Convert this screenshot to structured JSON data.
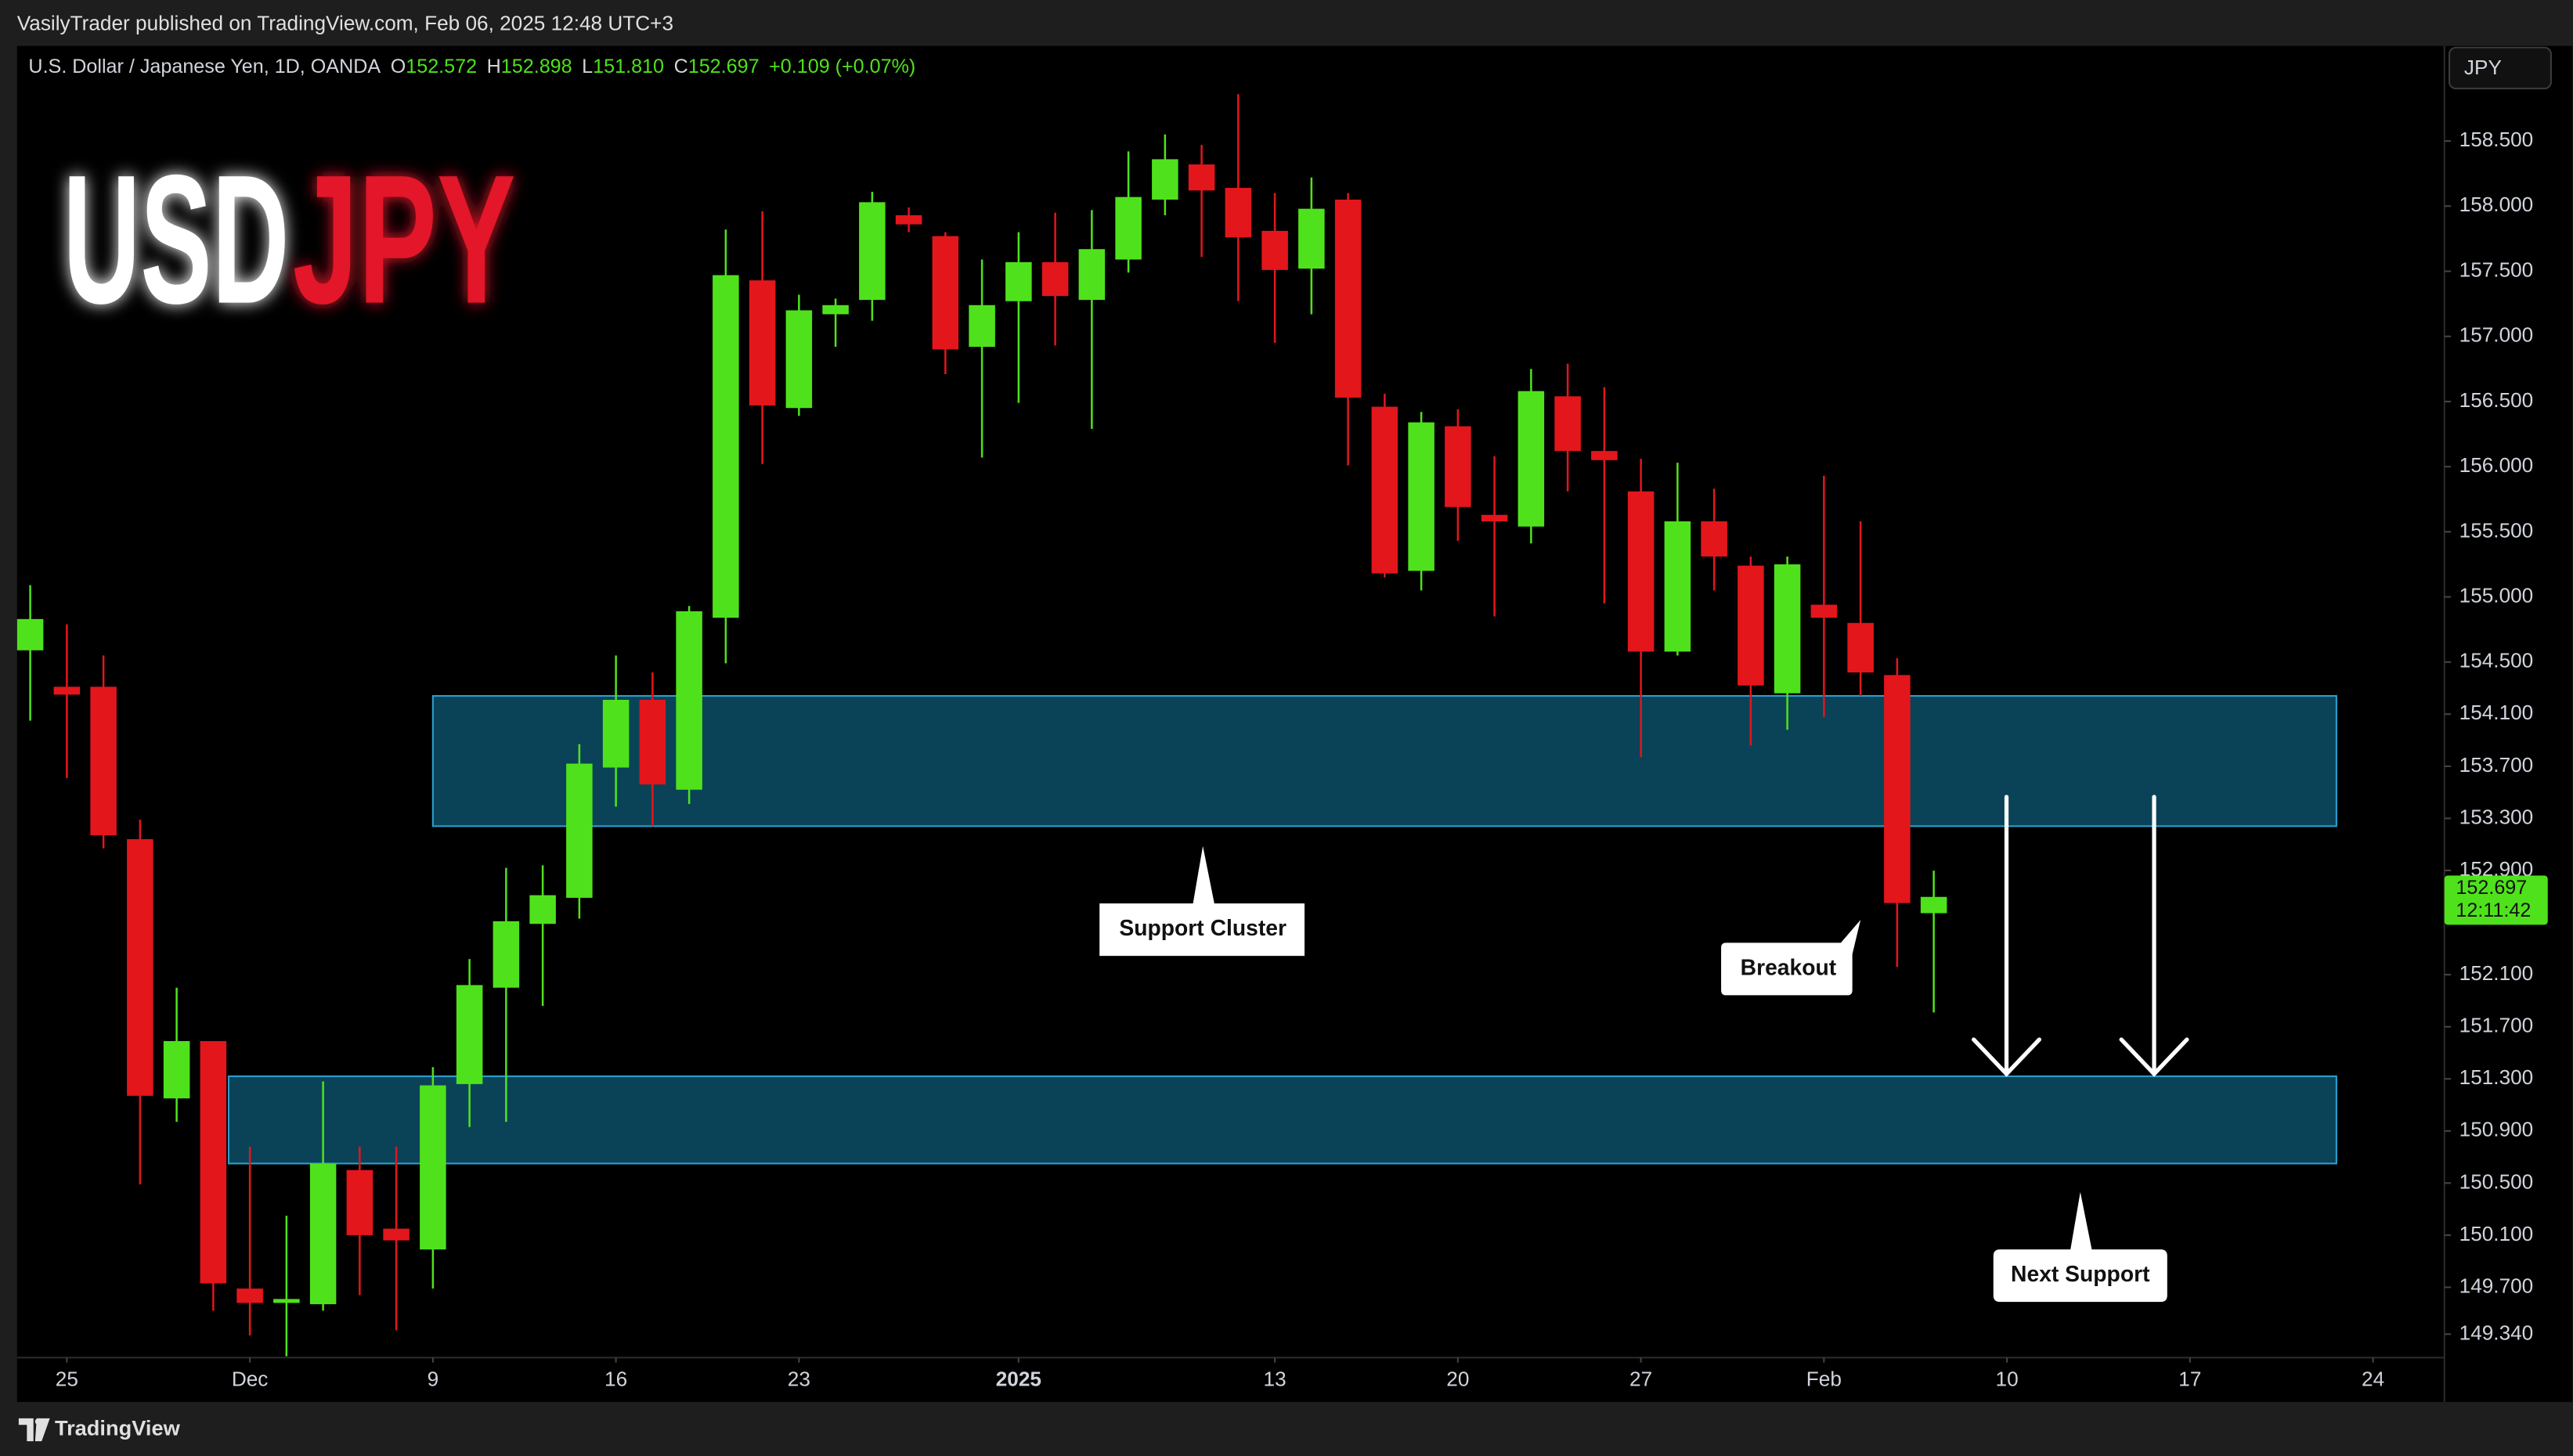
{
  "header": "VasilyTrader published on TradingView.com, Feb 06, 2025 12:48 UTC+3",
  "footer": "TradingView",
  "chart_data": {
    "type": "candlestick",
    "logo": [
      "USD",
      "JPY"
    ],
    "symbol": "U.S. Dollar / Japanese Yen, 1D, OANDA",
    "ohlc_legend": [
      {
        "key": "O",
        "value": "152.572"
      },
      {
        "key": "H",
        "value": "152.898"
      },
      {
        "key": "L",
        "value": "151.810"
      },
      {
        "key": "C",
        "value": "152.697"
      }
    ],
    "change": "+0.109 (+0.07%)",
    "currency": "JPY",
    "last_price": "152.697",
    "countdown": "12:11:42",
    "up_color": "#4fe21c",
    "down_color": "#e3161c",
    "x": [
      0,
      1,
      2,
      3,
      4,
      5,
      6,
      7,
      8,
      9,
      10,
      11,
      12,
      13,
      14,
      15,
      16,
      17,
      18,
      19,
      20,
      21,
      22,
      23,
      24,
      25,
      26,
      27,
      28,
      29,
      30,
      31,
      32,
      33,
      34,
      35,
      36,
      37,
      38,
      39,
      40,
      41,
      42,
      43,
      44,
      45,
      46,
      47,
      48,
      49,
      50,
      51,
      52
    ],
    "open": [
      154.59,
      154.31,
      154.31,
      153.14,
      151.15,
      151.59,
      149.69,
      149.58,
      149.57,
      150.6,
      150.15,
      149.99,
      151.26,
      152.0,
      152.49,
      152.69,
      153.69,
      154.21,
      153.52,
      154.84,
      157.43,
      156.45,
      157.17,
      157.28,
      157.93,
      157.77,
      156.92,
      157.27,
      157.57,
      157.28,
      157.59,
      158.05,
      158.32,
      158.14,
      157.81,
      157.52,
      158.05,
      156.46,
      155.2,
      156.31,
      155.63,
      155.54,
      156.54,
      156.12,
      155.81,
      154.58,
      155.58,
      155.24,
      154.26,
      154.94,
      154.8,
      154.4,
      152.572
    ],
    "high": [
      155.09,
      154.79,
      154.55,
      153.29,
      152.0,
      151.59,
      150.78,
      150.25,
      151.28,
      150.78,
      150.78,
      151.39,
      152.22,
      152.92,
      152.94,
      153.87,
      154.55,
      154.42,
      154.93,
      157.82,
      157.96,
      157.32,
      157.29,
      158.11,
      157.99,
      157.8,
      157.59,
      157.8,
      157.95,
      157.97,
      158.42,
      158.55,
      158.47,
      158.86,
      158.1,
      158.22,
      158.1,
      156.56,
      156.42,
      156.44,
      156.08,
      156.75,
      156.79,
      156.61,
      156.06,
      156.03,
      155.83,
      155.31,
      155.31,
      155.93,
      155.58,
      154.53,
      152.898
    ],
    "low": [
      154.05,
      153.61,
      153.07,
      150.49,
      150.97,
      149.52,
      149.33,
      149.17,
      149.52,
      149.64,
      149.37,
      149.69,
      150.93,
      150.97,
      151.86,
      152.53,
      153.39,
      153.24,
      153.41,
      154.49,
      156.02,
      156.39,
      156.92,
      157.12,
      157.8,
      156.71,
      156.07,
      156.49,
      156.93,
      156.29,
      157.49,
      157.93,
      157.61,
      157.27,
      156.95,
      157.17,
      156.01,
      155.15,
      155.05,
      155.43,
      154.85,
      155.41,
      155.81,
      154.95,
      153.77,
      154.55,
      155.05,
      153.86,
      153.98,
      154.08,
      154.24,
      152.16,
      151.81
    ],
    "close": [
      154.83,
      154.25,
      153.17,
      151.17,
      151.59,
      149.73,
      149.58,
      149.61,
      150.65,
      150.1,
      150.06,
      151.25,
      152.02,
      152.51,
      152.71,
      153.72,
      154.21,
      153.56,
      154.89,
      157.47,
      156.47,
      157.2,
      157.24,
      158.03,
      157.86,
      156.9,
      157.24,
      157.57,
      157.31,
      157.67,
      158.07,
      158.36,
      158.12,
      157.76,
      157.51,
      157.98,
      156.53,
      155.18,
      156.34,
      155.69,
      155.58,
      156.58,
      156.12,
      156.05,
      154.58,
      155.58,
      155.31,
      154.32,
      155.25,
      154.84,
      154.42,
      152.65,
      152.697
    ],
    "xlim": [
      -0.36,
      65.95
    ],
    "xticks": [
      {
        "value": 1,
        "label": "25"
      },
      {
        "value": 6,
        "label": "Dec"
      },
      {
        "value": 11,
        "label": "9"
      },
      {
        "value": 16,
        "label": "16"
      },
      {
        "value": 21,
        "label": "23"
      },
      {
        "value": 27,
        "label": "2025",
        "bold": true
      },
      {
        "value": 34,
        "label": "13"
      },
      {
        "value": 39,
        "label": "20"
      },
      {
        "value": 44,
        "label": "27"
      },
      {
        "value": 49,
        "label": "Feb"
      },
      {
        "value": 54,
        "label": "10"
      },
      {
        "value": 59,
        "label": "17"
      },
      {
        "value": 64,
        "label": "24"
      }
    ],
    "ylim": [
      149.16,
      159.23
    ],
    "yticks": [
      {
        "value": 149.34,
        "label": "149.340"
      },
      {
        "value": 149.7,
        "label": "149.700"
      },
      {
        "value": 150.1,
        "label": "150.100"
      },
      {
        "value": 150.5,
        "label": "150.500"
      },
      {
        "value": 150.9,
        "label": "150.900"
      },
      {
        "value": 151.3,
        "label": "151.300"
      },
      {
        "value": 151.7,
        "label": "151.700"
      },
      {
        "value": 152.1,
        "label": "152.100"
      },
      {
        "value": 152.9,
        "label": "152.900"
      },
      {
        "value": 153.3,
        "label": "153.300"
      },
      {
        "value": 153.7,
        "label": "153.700"
      },
      {
        "value": 154.1,
        "label": "154.100"
      },
      {
        "value": 154.5,
        "label": "154.500"
      },
      {
        "value": 155,
        "label": "155.000"
      },
      {
        "value": 155.5,
        "label": "155.500"
      },
      {
        "value": 156,
        "label": "156.000"
      },
      {
        "value": 156.5,
        "label": "156.500"
      },
      {
        "value": 157,
        "label": "157.000"
      },
      {
        "value": 157.5,
        "label": "157.500"
      },
      {
        "value": 158,
        "label": "158.000"
      },
      {
        "value": 158.5,
        "label": "158.500"
      }
    ],
    "grid": false,
    "zones": [
      {
        "x": [
          11,
          63
        ],
        "y": [
          153.24,
          154.24
        ]
      },
      {
        "x": [
          5.42,
          63
        ],
        "y": [
          150.65,
          151.32
        ]
      }
    ],
    "annotations": [
      "Support Cluster",
      "Breakout",
      "Next Support"
    ]
  }
}
